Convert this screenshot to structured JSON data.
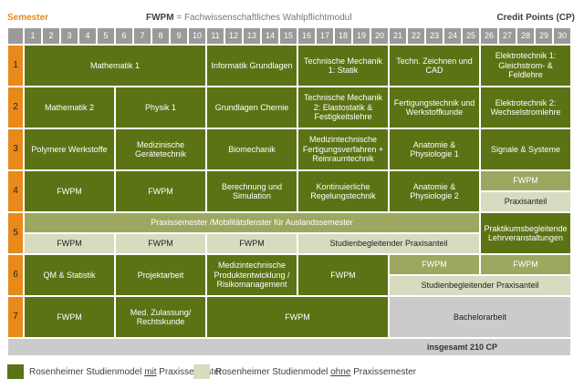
{
  "header": {
    "semester": "Semester",
    "fwpm_abbr": "FWPM",
    "fwpm_def": "= Fachwissenschaftliches Wahlpflichtmodul",
    "credit_points": "Credit Points (CP)"
  },
  "columns": [
    "1",
    "2",
    "3",
    "4",
    "5",
    "6",
    "7",
    "8",
    "9",
    "10",
    "11",
    "12",
    "13",
    "14",
    "15",
    "16",
    "17",
    "18",
    "19",
    "20",
    "21",
    "22",
    "23",
    "24",
    "25",
    "26",
    "27",
    "28",
    "29",
    "30"
  ],
  "semesters": [
    {
      "label": "1",
      "modules": [
        {
          "text": "Mathematik 1",
          "start": 1,
          "span": 10,
          "style": "dark"
        },
        {
          "text": "Informatik Grundlagen",
          "start": 11,
          "span": 5,
          "style": "dark"
        },
        {
          "text": "Technische Mechanik 1: Statik",
          "start": 16,
          "span": 5,
          "style": "dark"
        },
        {
          "text": "Techn. Zeichnen und CAD",
          "start": 21,
          "span": 5,
          "style": "dark"
        },
        {
          "text": "Elektrotechnik 1: Gleichstrom- & Feldlehre",
          "start": 26,
          "span": 5,
          "style": "dark"
        }
      ]
    },
    {
      "label": "2",
      "modules": [
        {
          "text": "Mathematik 2",
          "start": 1,
          "span": 5,
          "style": "dark"
        },
        {
          "text": "Physik 1",
          "start": 6,
          "span": 5,
          "style": "dark"
        },
        {
          "text": "Grundlagen Chemie",
          "start": 11,
          "span": 5,
          "style": "dark"
        },
        {
          "text": "Technische Mechanik 2: Elastostatik & Festigkeitslehre",
          "start": 16,
          "span": 5,
          "style": "dark"
        },
        {
          "text": "Fertigungstechnik und Werkstoffkunde",
          "start": 21,
          "span": 5,
          "style": "dark"
        },
        {
          "text": "Elektrotechnik 2: Wechselstromlehre",
          "start": 26,
          "span": 5,
          "style": "dark"
        }
      ]
    },
    {
      "label": "3",
      "modules": [
        {
          "text": "Polymere Werkstoffe",
          "start": 1,
          "span": 5,
          "style": "dark"
        },
        {
          "text": "Medizinische Gerätetechnik",
          "start": 6,
          "span": 5,
          "style": "dark"
        },
        {
          "text": "Biomechanik",
          "start": 11,
          "span": 5,
          "style": "dark"
        },
        {
          "text": "Medizintechnische Fertigungsverfahren + Reinraumtechnik",
          "start": 16,
          "span": 5,
          "style": "dark"
        },
        {
          "text": "Anatomie & Physiologie 1",
          "start": 21,
          "span": 5,
          "style": "dark"
        },
        {
          "text": "Signale & Systeme",
          "start": 26,
          "span": 5,
          "style": "dark"
        }
      ]
    },
    {
      "label": "4",
      "modules": [
        {
          "text": "FWPM",
          "start": 1,
          "span": 5,
          "style": "dark"
        },
        {
          "text": "FWPM",
          "start": 6,
          "span": 5,
          "style": "dark"
        },
        {
          "text": "Berechnung und Simulation",
          "start": 11,
          "span": 5,
          "style": "dark"
        },
        {
          "text": "Kontinuierliche Regelungstechnik",
          "start": 16,
          "span": 5,
          "style": "dark"
        },
        {
          "text": "Anatomie & Physiologie 2",
          "start": 21,
          "span": 5,
          "style": "dark"
        },
        {
          "text": "FWPM",
          "start": 26,
          "span": 5,
          "style": "mid",
          "half": "top"
        },
        {
          "text": "Praxisanteil",
          "start": 26,
          "span": 5,
          "style": "light",
          "half": "bottom"
        }
      ]
    },
    {
      "label": "5",
      "modules": [
        {
          "text": "Praxissemester /Mobilitätsfenster für Auslandssemester",
          "start": 1,
          "span": 25,
          "style": "mid",
          "half": "top"
        },
        {
          "text": "FWPM",
          "start": 1,
          "span": 5,
          "style": "light",
          "half": "bottom"
        },
        {
          "text": "FWPM",
          "start": 6,
          "span": 5,
          "style": "light",
          "half": "bottom"
        },
        {
          "text": "FWPM",
          "start": 11,
          "span": 5,
          "style": "light",
          "half": "bottom"
        },
        {
          "text": "Studienbegleitender Praxisanteil",
          "start": 16,
          "span": 10,
          "style": "light",
          "half": "bottom"
        },
        {
          "text": "Praktikumsbegleitende Lehrveranstaltungen",
          "start": 26,
          "span": 5,
          "style": "dark"
        }
      ]
    },
    {
      "label": "6",
      "modules": [
        {
          "text": "QM & Statistik",
          "start": 1,
          "span": 5,
          "style": "dark"
        },
        {
          "text": "Projektarbeit",
          "start": 6,
          "span": 5,
          "style": "dark"
        },
        {
          "text": "Medizintechnische Produktentwicklung / Risikomanagement",
          "start": 11,
          "span": 5,
          "style": "dark"
        },
        {
          "text": "FWPM",
          "start": 16,
          "span": 5,
          "style": "dark"
        },
        {
          "text": "FWPM",
          "start": 21,
          "span": 5,
          "style": "mid",
          "half": "top"
        },
        {
          "text": "FWPM",
          "start": 26,
          "span": 5,
          "style": "mid",
          "half": "top"
        },
        {
          "text": "Studienbegleitender Praxisanteil",
          "start": 21,
          "span": 10,
          "style": "light",
          "half": "bottom"
        }
      ]
    },
    {
      "label": "7",
      "modules": [
        {
          "text": "FWPM",
          "start": 1,
          "span": 5,
          "style": "dark"
        },
        {
          "text": "Med. Zulassung/ Rechtskunde",
          "start": 6,
          "span": 5,
          "style": "dark"
        },
        {
          "text": "FWPM",
          "start": 11,
          "span": 10,
          "style": "dark"
        },
        {
          "text": "Bachelorarbeit",
          "start": 21,
          "span": 10,
          "style": "gray"
        }
      ]
    }
  ],
  "total": "insgesamt 210 CP",
  "legend": [
    {
      "pre": "Rosenheimer Studienmodel ",
      "u": "mit",
      "post": " Praxissemester",
      "color": "#5b7315"
    },
    {
      "pre": "Rosenheimer Studienmodel ",
      "u": "ohne",
      "post": " Praxissemester",
      "color": "#d7dbc0"
    }
  ]
}
